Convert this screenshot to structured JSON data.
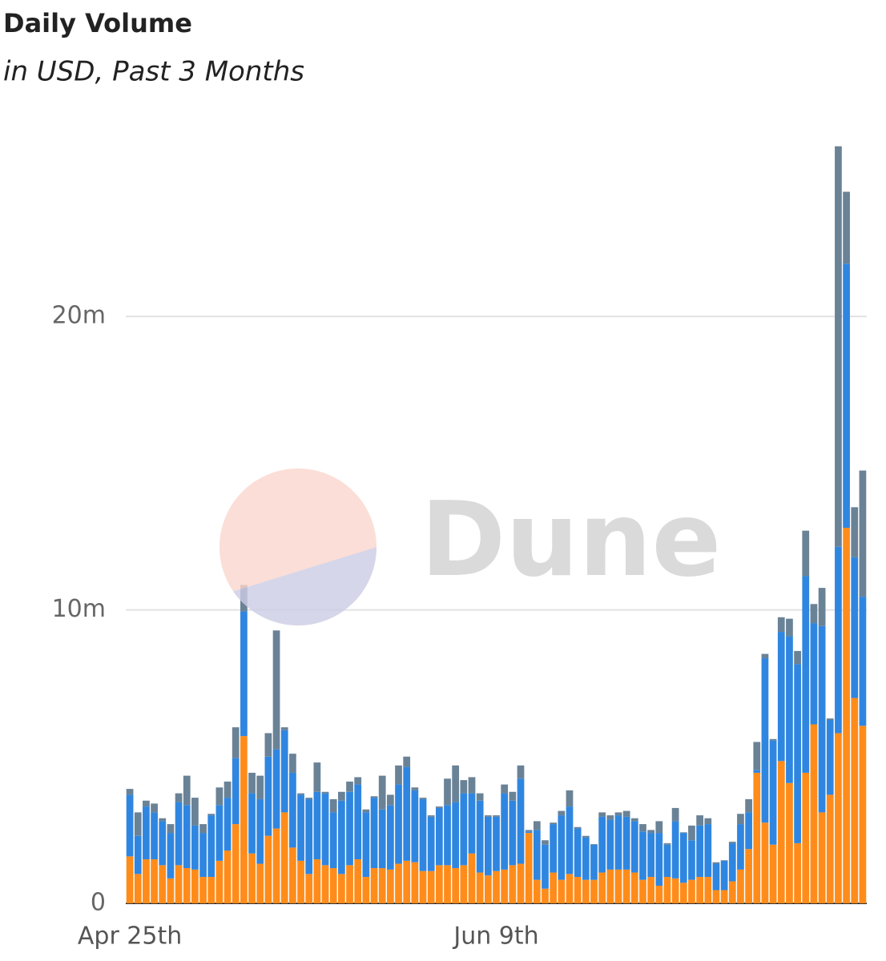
{
  "chart_data": {
    "type": "stacked_bar",
    "title": "Daily Volume",
    "subtitle": "in USD, Past 3 Months",
    "watermark": "Dune",
    "categories": [
      "Apr 25th",
      null,
      null,
      null,
      null,
      null,
      null,
      null,
      null,
      null,
      null,
      null,
      null,
      null,
      null,
      null,
      null,
      null,
      null,
      null,
      null,
      null,
      null,
      null,
      null,
      null,
      null,
      null,
      null,
      null,
      null,
      null,
      null,
      null,
      null,
      null,
      null,
      null,
      null,
      null,
      null,
      null,
      null,
      null,
      null,
      "Jun 9th",
      null,
      null,
      null,
      null,
      null,
      null,
      null,
      null,
      null,
      null,
      null,
      null,
      null,
      null,
      null,
      null,
      null,
      null,
      null,
      null,
      null,
      null,
      null,
      null,
      null,
      null,
      null,
      null,
      null,
      null,
      null,
      null,
      null,
      null,
      null,
      null,
      null,
      null,
      null,
      null,
      null,
      null,
      null,
      null,
      null
    ],
    "series": [
      {
        "color": "#ff8c1a",
        "values": [
          1600000,
          1000000,
          1500000,
          1500000,
          1300000,
          850000,
          1300000,
          1200000,
          1150000,
          900000,
          900000,
          1450000,
          1800000,
          2700000,
          5700000,
          1700000,
          1350000,
          2300000,
          2550000,
          3100000,
          1900000,
          1450000,
          1000000,
          1500000,
          1300000,
          1200000,
          1000000,
          1300000,
          1500000,
          900000,
          1200000,
          1200000,
          1150000,
          1350000,
          1450000,
          1400000,
          1100000,
          1100000,
          1300000,
          1300000,
          1200000,
          1300000,
          1700000,
          1050000,
          950000,
          1100000,
          1150000,
          1300000,
          1350000,
          2400000,
          800000,
          500000,
          1050000,
          800000,
          1000000,
          900000,
          800000,
          800000,
          1050000,
          1150000,
          1150000,
          1150000,
          1050000,
          800000,
          900000,
          600000,
          900000,
          850000,
          700000,
          800000,
          900000,
          900000,
          450000,
          450000,
          750000,
          1150000,
          1850000,
          4450000,
          2750000,
          2000000,
          4850000,
          4100000,
          2050000,
          4450000,
          6100000,
          3100000,
          3700000,
          5800000,
          12800000,
          7000000,
          6050000
        ]
      },
      {
        "color": "#2f86e0",
        "values": [
          2100000,
          1300000,
          1800000,
          1600000,
          1500000,
          1550000,
          2150000,
          2150000,
          1500000,
          1500000,
          2100000,
          1900000,
          1800000,
          2250000,
          4250000,
          2050000,
          2200000,
          2700000,
          2700000,
          2800000,
          2550000,
          2250000,
          2550000,
          2300000,
          2450000,
          1900000,
          2500000,
          2500000,
          2550000,
          2200000,
          2400000,
          2000000,
          2200000,
          2700000,
          3200000,
          2450000,
          2450000,
          1850000,
          1950000,
          2050000,
          2250000,
          2450000,
          2050000,
          2450000,
          2000000,
          1850000,
          2600000,
          2200000,
          2900000,
          50000,
          1700000,
          1500000,
          1650000,
          2200000,
          2300000,
          1650000,
          1450000,
          1200000,
          1900000,
          1700000,
          1850000,
          1800000,
          1750000,
          1650000,
          1500000,
          1800000,
          1100000,
          1950000,
          1700000,
          1350000,
          1750000,
          1800000,
          900000,
          1000000,
          1300000,
          1550000,
          1250000,
          100000,
          5600000,
          3550000,
          4400000,
          5000000,
          6100000,
          6700000,
          3450000,
          6350000,
          2550000,
          6350000,
          9000000,
          4800000,
          4400000
        ]
      },
      {
        "color": "#6a8296",
        "values": [
          200000,
          800000,
          200000,
          300000,
          100000,
          300000,
          300000,
          1000000,
          950000,
          300000,
          50000,
          600000,
          550000,
          1050000,
          900000,
          700000,
          800000,
          800000,
          4050000,
          100000,
          650000,
          50000,
          50000,
          1000000,
          50000,
          450000,
          300000,
          350000,
          250000,
          100000,
          50000,
          1150000,
          350000,
          650000,
          350000,
          100000,
          50000,
          50000,
          50000,
          900000,
          1250000,
          450000,
          550000,
          250000,
          50000,
          50000,
          300000,
          300000,
          450000,
          50000,
          300000,
          150000,
          50000,
          150000,
          550000,
          50000,
          50000,
          20000,
          150000,
          150000,
          100000,
          200000,
          100000,
          250000,
          100000,
          400000,
          50000,
          450000,
          20000,
          500000,
          350000,
          200000,
          50000,
          20000,
          50000,
          350000,
          450000,
          950000,
          150000,
          50000,
          500000,
          600000,
          450000,
          1550000,
          650000,
          1300000,
          50000,
          13650000,
          2450000,
          1700000,
          4300000
        ]
      }
    ],
    "ylim": [
      0,
      26200000
    ],
    "yticks": [
      0,
      {
        "value": 10000000,
        "label": "10m"
      },
      {
        "value": 20000000,
        "label": "20m"
      }
    ],
    "grid": true
  }
}
